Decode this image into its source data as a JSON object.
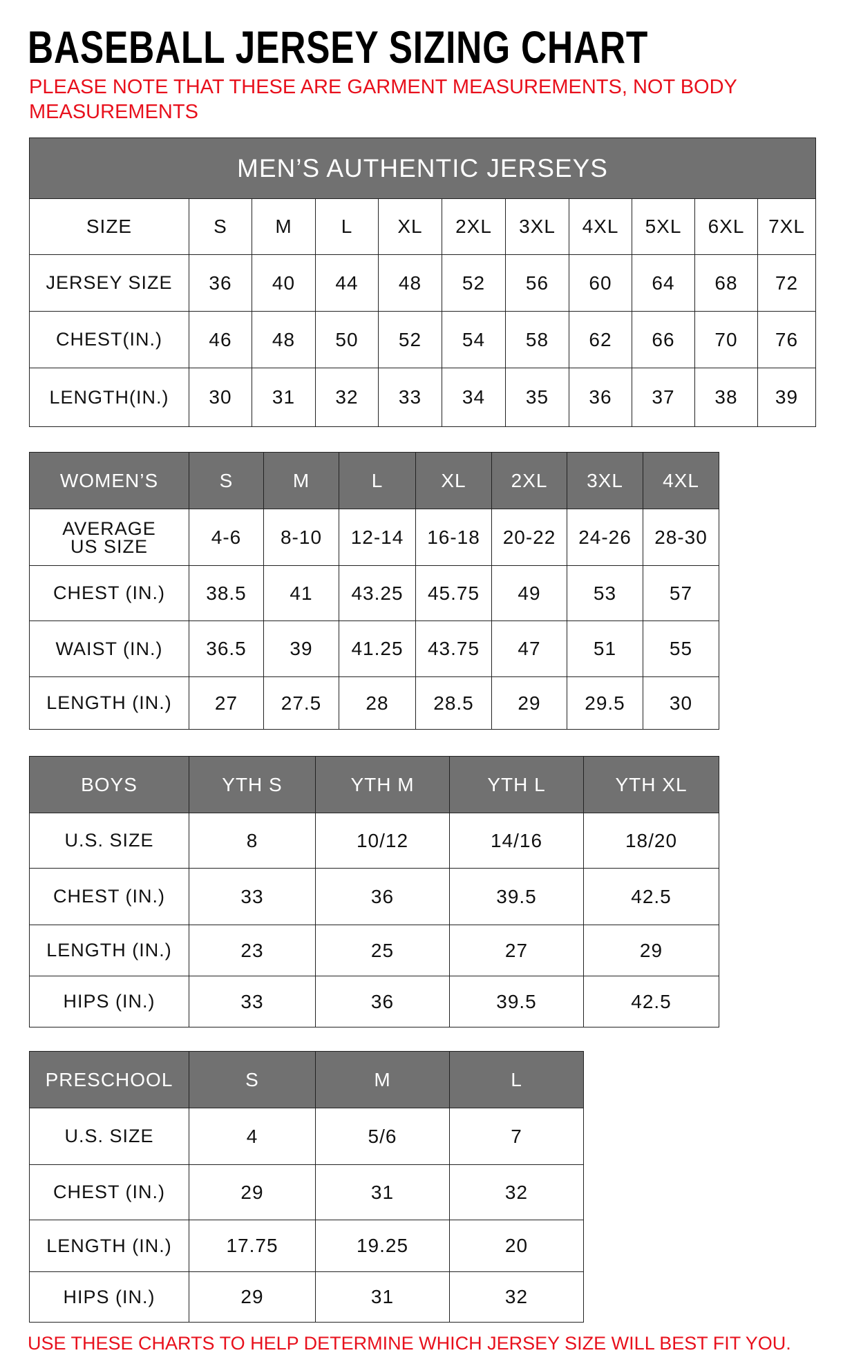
{
  "title": "BASEBALL JERSEY SIZING CHART",
  "note": "PLEASE NOTE THAT THESE ARE GARMENT MEASUREMENTS, NOT BODY MEASUREMENTS",
  "footer": "USE THESE CHARTS TO HELP DETERMINE WHICH JERSEY SIZE WILL BEST FIT YOU.",
  "colors": {
    "header_bg": "#717171",
    "note_red": "#e8101c"
  },
  "tables": [
    {
      "id": "mens",
      "banner": "MEN’S AUTHENTIC JERSEYS",
      "header": [
        "SIZE",
        "S",
        "M",
        "L",
        "XL",
        "2XL",
        "3XL",
        "4XL",
        "5XL",
        "6XL",
        "7XL"
      ],
      "header_style": "plain",
      "rows": [
        [
          "JERSEY SIZE",
          "36",
          "40",
          "44",
          "48",
          "52",
          "56",
          "60",
          "64",
          "68",
          "72"
        ],
        [
          "CHEST(IN.)",
          "46",
          "48",
          "50",
          "52",
          "54",
          "58",
          "62",
          "66",
          "70",
          "76"
        ],
        [
          "LENGTH(IN.)",
          "30",
          "31",
          "32",
          "33",
          "34",
          "35",
          "36",
          "37",
          "38",
          "39"
        ]
      ]
    },
    {
      "id": "womens",
      "header": [
        "WOMEN’S",
        "S",
        "M",
        "L",
        "XL",
        "2XL",
        "3XL",
        "4XL"
      ],
      "rows": [
        [
          "AVERAGE US SIZE",
          "4-6",
          "8-10",
          "12-14",
          "16-18",
          "20-22",
          "24-26",
          "28-30"
        ],
        [
          "CHEST (IN.)",
          "38.5",
          "41",
          "43.25",
          "45.75",
          "49",
          "53",
          "57"
        ],
        [
          "WAIST (IN.)",
          "36.5",
          "39",
          "41.25",
          "43.75",
          "47",
          "51",
          "55"
        ],
        [
          "LENGTH (IN.)",
          "27",
          "27.5",
          "28",
          "28.5",
          "29",
          "29.5",
          "30"
        ]
      ]
    },
    {
      "id": "boys",
      "header": [
        "BOYS",
        "YTH S",
        "YTH M",
        "YTH L",
        "YTH XL"
      ],
      "rows": [
        [
          "U.S. SIZE",
          "8",
          "10/12",
          "14/16",
          "18/20"
        ],
        [
          "CHEST (IN.)",
          "33",
          "36",
          "39.5",
          "42.5"
        ],
        [
          "LENGTH (IN.)",
          "23",
          "25",
          "27",
          "29"
        ],
        [
          "HIPS (IN.)",
          "33",
          "36",
          "39.5",
          "42.5"
        ]
      ]
    },
    {
      "id": "preschool",
      "header": [
        "PRESCHOOL",
        "S",
        "M",
        "L"
      ],
      "rows": [
        [
          "U.S. SIZE",
          "4",
          "5/6",
          "7"
        ],
        [
          "CHEST (IN.)",
          "29",
          "31",
          "32"
        ],
        [
          "LENGTH (IN.)",
          "17.75",
          "19.25",
          "20"
        ],
        [
          "HIPS (IN.)",
          "29",
          "31",
          "32"
        ]
      ]
    }
  ]
}
